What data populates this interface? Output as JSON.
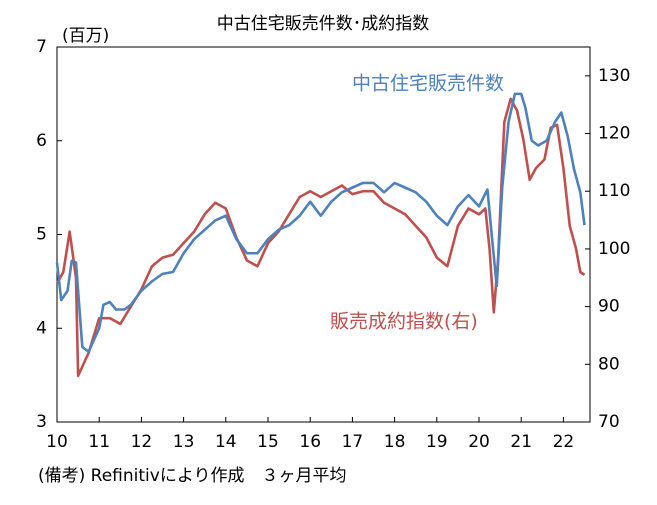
{
  "chart_data": {
    "type": "line",
    "title": "中古住宅販売件数･成約指数",
    "y_unit": "(百万)",
    "footnote": "(備考) Refinitivにより作成　３ヶ月平均",
    "xlim": [
      10,
      22.63
    ],
    "xticks": [
      10,
      11,
      12,
      13,
      14,
      15,
      16,
      17,
      18,
      19,
      20,
      21,
      22
    ],
    "ylim": [
      3,
      7
    ],
    "yticks": [
      3,
      4,
      5,
      6,
      7
    ],
    "y2lim": [
      70,
      135
    ],
    "y2ticks": [
      70,
      80,
      90,
      100,
      110,
      120,
      130
    ],
    "series": [
      {
        "name": "中古住宅販売件数",
        "color": "#4f81bd",
        "axis": "y",
        "x": [
          10.0,
          10.1,
          10.25,
          10.35,
          10.45,
          10.6,
          10.75,
          11.0,
          11.1,
          11.25,
          11.4,
          11.6,
          11.75,
          12.0,
          12.25,
          12.5,
          12.75,
          13.0,
          13.25,
          13.5,
          13.75,
          14.0,
          14.25,
          14.5,
          14.75,
          15.0,
          15.25,
          15.5,
          15.75,
          16.0,
          16.25,
          16.5,
          16.75,
          17.0,
          17.25,
          17.5,
          17.75,
          18.0,
          18.25,
          18.5,
          18.75,
          19.0,
          19.25,
          19.5,
          19.75,
          20.0,
          20.2,
          20.3,
          20.42,
          20.55,
          20.7,
          20.85,
          21.0,
          21.1,
          21.25,
          21.4,
          21.6,
          21.8,
          21.95,
          22.1,
          22.25,
          22.4,
          22.5
        ],
        "values": [
          4.7,
          4.3,
          4.4,
          4.72,
          4.7,
          3.8,
          3.75,
          4.0,
          4.25,
          4.28,
          4.2,
          4.2,
          4.25,
          4.4,
          4.5,
          4.58,
          4.6,
          4.8,
          4.95,
          5.05,
          5.15,
          5.2,
          4.95,
          4.8,
          4.8,
          4.95,
          5.05,
          5.1,
          5.2,
          5.35,
          5.2,
          5.35,
          5.45,
          5.5,
          5.55,
          5.55,
          5.45,
          5.55,
          5.5,
          5.45,
          5.35,
          5.2,
          5.1,
          5.3,
          5.42,
          5.3,
          5.48,
          5.0,
          4.45,
          5.5,
          6.2,
          6.5,
          6.5,
          6.35,
          6.0,
          5.95,
          6.0,
          6.2,
          6.3,
          6.05,
          5.7,
          5.45,
          5.1
        ]
      },
      {
        "name": "販売成約指数(右)",
        "color": "#c0504d",
        "axis": "y2",
        "x": [
          10.0,
          10.15,
          10.3,
          10.45,
          10.5,
          10.75,
          11.0,
          11.25,
          11.5,
          11.75,
          12.0,
          12.25,
          12.5,
          12.75,
          13.0,
          13.25,
          13.5,
          13.75,
          14.0,
          14.25,
          14.5,
          14.75,
          15.0,
          15.25,
          15.5,
          15.75,
          16.0,
          16.25,
          16.5,
          16.75,
          17.0,
          17.25,
          17.5,
          17.75,
          18.0,
          18.25,
          18.5,
          18.75,
          19.0,
          19.25,
          19.5,
          19.75,
          20.0,
          20.15,
          20.25,
          20.35,
          20.45,
          20.6,
          20.75,
          20.9,
          21.05,
          21.2,
          21.35,
          21.55,
          21.7,
          21.85,
          22.0,
          22.15,
          22.3,
          22.4,
          22.5
        ],
        "values": [
          94,
          96,
          103,
          95,
          78,
          82,
          88,
          88,
          87,
          90,
          93,
          97,
          98.5,
          99,
          101,
          103,
          106,
          108,
          107,
          102,
          98,
          97,
          101,
          103,
          106,
          109,
          110,
          109,
          110,
          111,
          109.5,
          110,
          110,
          108,
          107,
          106,
          104,
          102,
          98.5,
          97,
          104,
          107,
          106,
          107,
          100,
          89,
          98,
          122,
          126,
          124,
          119,
          112,
          114,
          115.5,
          121,
          121.5,
          114,
          104,
          100,
          96,
          95.5
        ]
      }
    ]
  }
}
